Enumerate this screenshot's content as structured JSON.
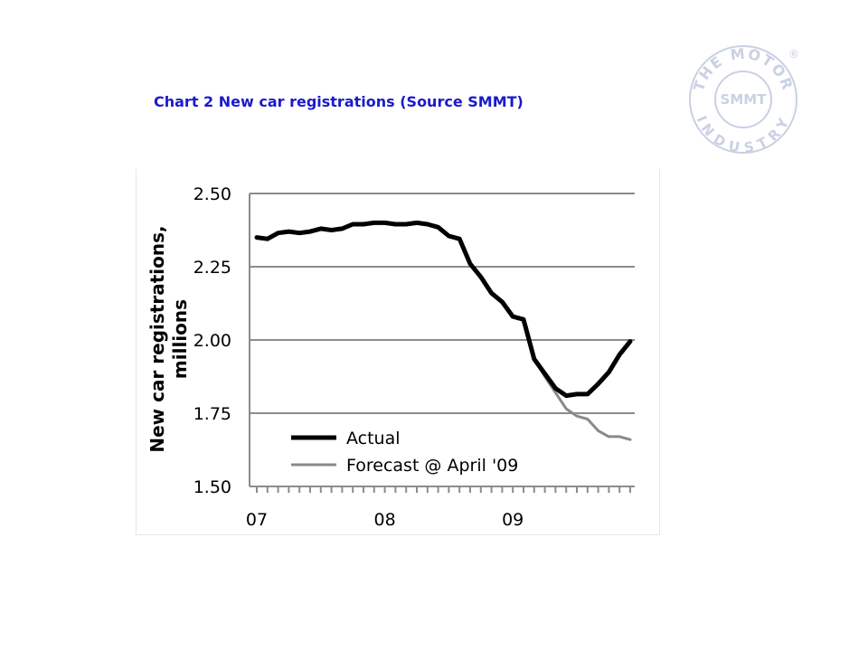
{
  "header": {
    "title": "Chart 2 New car registrations (Source SMMT)"
  },
  "logo": {
    "text_top": "THE MOTOR",
    "text_center": "SMMT",
    "text_bottom": "INDUSTRY",
    "registered": "®",
    "color": "#c9d1e3"
  },
  "chart_data": {
    "type": "line",
    "ylabel": "New car registrations, millions",
    "ylabel_lines": [
      "New car registrations,",
      "millions"
    ],
    "ylim": [
      1.5,
      2.5
    ],
    "yticks": [
      "2.50",
      "2.25",
      "2.00",
      "1.75",
      "1.50"
    ],
    "ytick_values": [
      2.5,
      2.25,
      2.0,
      1.75,
      1.5
    ],
    "xtick_labels": [
      "07",
      "08",
      "09"
    ],
    "xtick_positions": [
      0,
      12,
      24
    ],
    "x_count": 36,
    "grid": true,
    "legend_position": "bottom-left",
    "series": [
      {
        "name": "Actual",
        "color": "#000000",
        "x": [
          0,
          1,
          2,
          3,
          4,
          5,
          6,
          7,
          8,
          9,
          10,
          11,
          12,
          13,
          14,
          15,
          16,
          17,
          18,
          19,
          20,
          21,
          22,
          23,
          24,
          25,
          26,
          27,
          28,
          29,
          30,
          31,
          32,
          33,
          34,
          35
        ],
        "values": [
          2.35,
          2.345,
          2.365,
          2.37,
          2.365,
          2.37,
          2.38,
          2.375,
          2.38,
          2.395,
          2.395,
          2.4,
          2.4,
          2.395,
          2.395,
          2.4,
          2.395,
          2.385,
          2.355,
          2.345,
          2.26,
          2.215,
          2.16,
          2.13,
          2.08,
          2.07,
          1.935,
          1.885,
          1.835,
          1.81,
          1.815,
          1.815,
          1.85,
          1.89,
          1.95,
          1.995
        ]
      },
      {
        "name": "Forecast @ April '09",
        "color": "#8a8a8a",
        "x": [
          26,
          27,
          28,
          29,
          30,
          31,
          32,
          33,
          34,
          35
        ],
        "values": [
          1.935,
          1.875,
          1.82,
          1.765,
          1.74,
          1.73,
          1.69,
          1.67,
          1.67,
          1.66
        ]
      }
    ]
  }
}
